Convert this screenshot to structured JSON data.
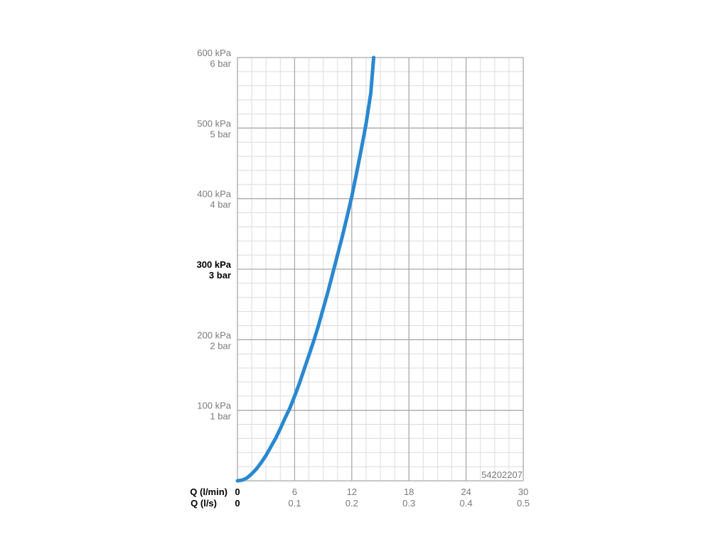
{
  "chart_data": {
    "type": "line",
    "colors": {
      "curve": "#2a88d0",
      "major_grid": "#a9a9a9",
      "minor_grid": "#dcdcdc",
      "text_gray": "#7a7a7a",
      "text_emph": "#000000"
    },
    "grid": true,
    "x_lpm_ticks": [
      "0",
      "6",
      "12",
      "18",
      "24",
      "30"
    ],
    "x_ls_ticks": [
      "0",
      "0.1",
      "0.2",
      "0.3",
      "0.4",
      "0.5"
    ],
    "xlabel_lpm": "Q (l/min)",
    "xlabel_ls": "Q (l/s)",
    "xlim": [
      0,
      30
    ],
    "ylim": [
      0,
      600
    ],
    "y_ticks": [
      {
        "value": 600,
        "kpa": "600 kPa",
        "bar": "6 bar",
        "emphasis": false
      },
      {
        "value": 500,
        "kpa": "500 kPa",
        "bar": "5 bar",
        "emphasis": false
      },
      {
        "value": 400,
        "kpa": "400 kPa",
        "bar": "4 bar",
        "emphasis": false
      },
      {
        "value": 300,
        "kpa": "300 kPa",
        "bar": "3 bar",
        "emphasis": true
      },
      {
        "value": 200,
        "kpa": "200 kPa",
        "bar": "2 bar",
        "emphasis": false
      },
      {
        "value": 100,
        "kpa": "100 kPa",
        "bar": "1 bar",
        "emphasis": false
      }
    ],
    "series": [
      {
        "x": [
          0,
          0.5,
          1,
          1.5,
          2,
          2.5,
          3,
          3.5,
          4,
          4.5,
          5,
          5.5,
          6,
          6.5,
          7,
          7.5,
          8,
          8.5,
          9,
          9.5,
          10,
          10.5,
          11,
          11.5,
          12,
          12.5,
          13,
          13.5,
          14,
          14.3
        ],
        "y": [
          0,
          1,
          4,
          10,
          17,
          26,
          36,
          48,
          60,
          74,
          89,
          103,
          120,
          138,
          158,
          178,
          198,
          220,
          244,
          268,
          294,
          320,
          346,
          374,
          403,
          436,
          470,
          506,
          550,
          600
        ]
      }
    ],
    "product_code": "54202207"
  }
}
